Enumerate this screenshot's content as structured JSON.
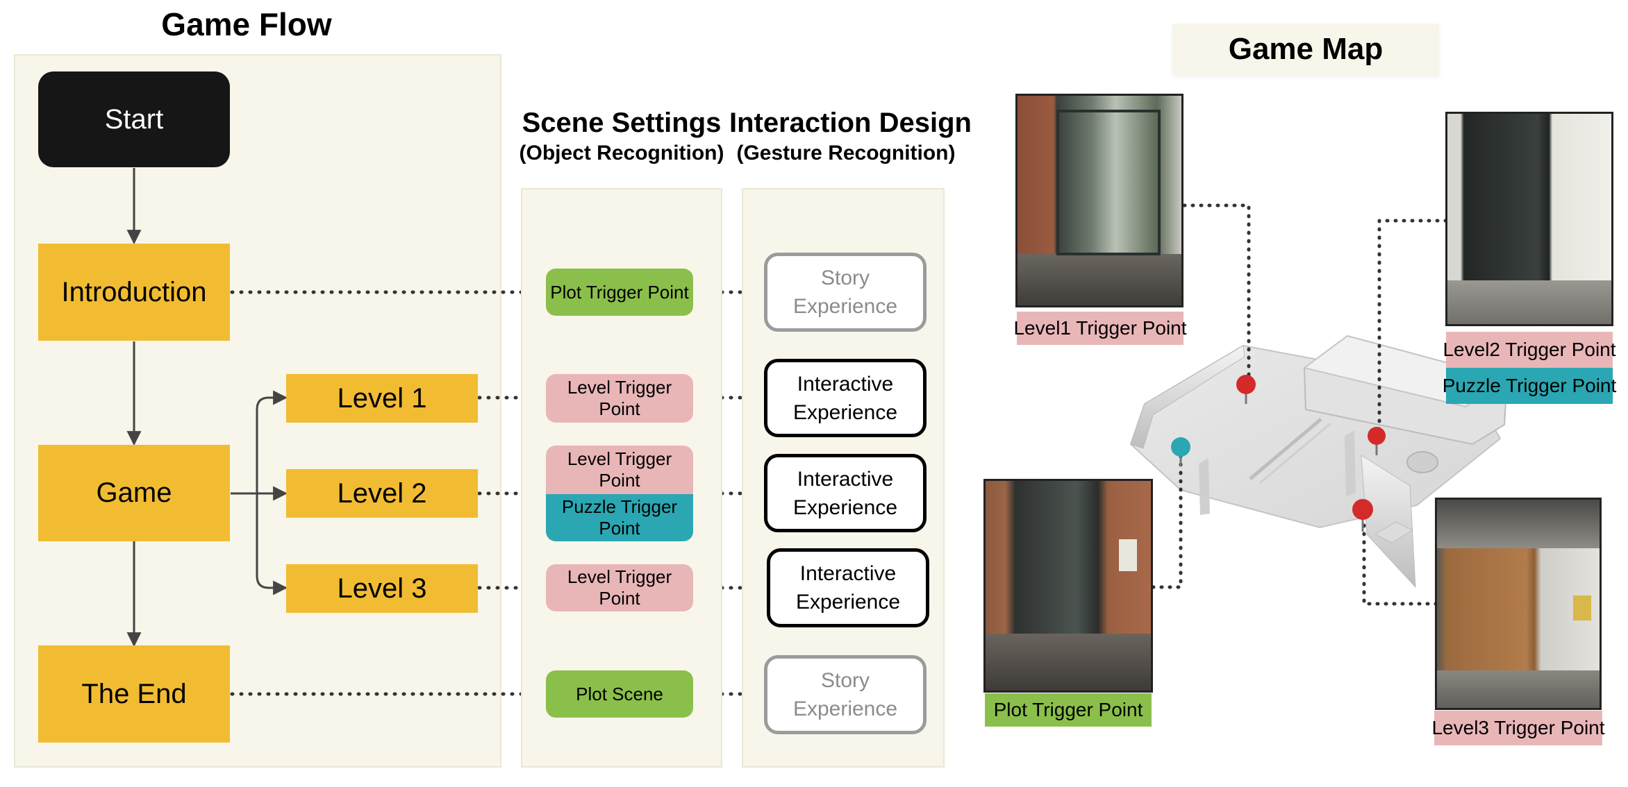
{
  "flow": {
    "title": "Game Flow",
    "start": "Start",
    "introduction": "Introduction",
    "game": "Game",
    "end": "The End",
    "levels": [
      "Level 1",
      "Level 2",
      "Level 3"
    ]
  },
  "scene": {
    "title": "Scene Settings",
    "subtitle": "(Object Recognition)",
    "items": [
      "Plot Trigger Point",
      "Level Trigger Point",
      "Level Trigger Point",
      "Puzzle Trigger Point",
      "Level Trigger Point",
      "Plot Scene"
    ]
  },
  "interaction": {
    "title": "Interaction Design",
    "subtitle": "(Gesture Recognition)",
    "story_1": "Story",
    "story_2": "Experience",
    "inter_1": "Interactive",
    "inter_2": "Experience"
  },
  "map": {
    "title": "Game Map",
    "labels": {
      "level1": "Level1 Trigger Point",
      "level2": "Level2 Trigger Point",
      "puzzle": "Puzzle Trigger Point",
      "plot": "Plot Trigger Point",
      "level3": "Level3 Trigger Point"
    },
    "pin_colors": {
      "red": "#d42a2a",
      "teal": "#2aa7b3"
    }
  }
}
